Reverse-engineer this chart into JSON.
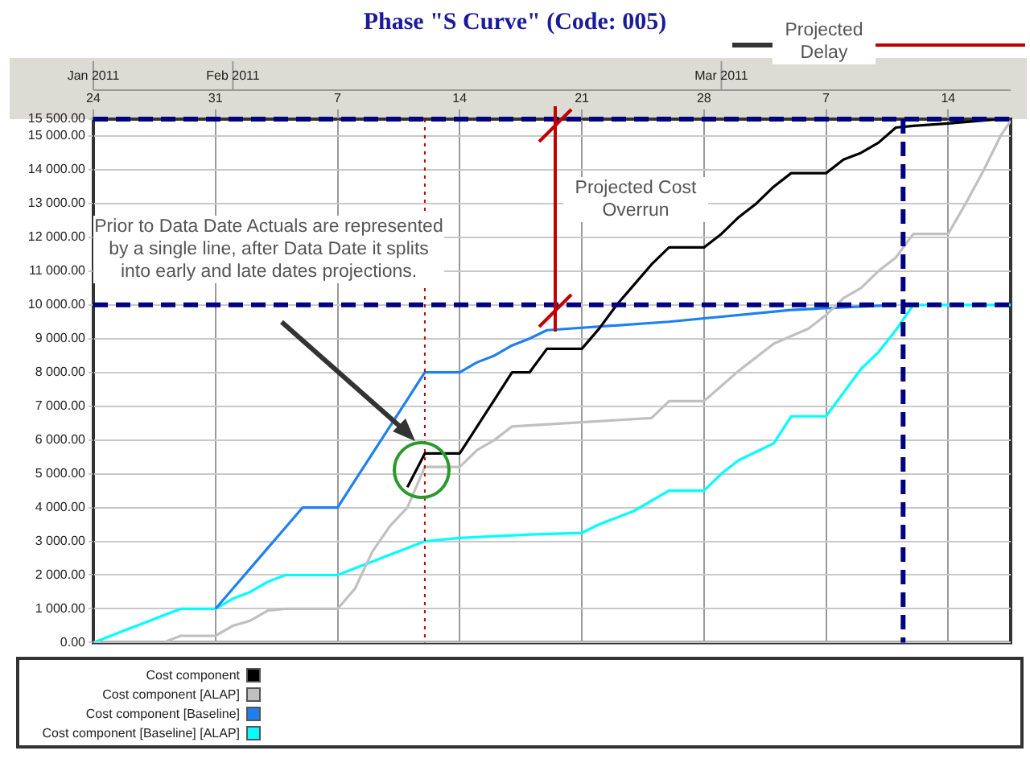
{
  "chart_data": {
    "type": "line",
    "title": "Phase \"S Curve\" (Code: 005)",
    "xlim": [
      "--01-24",
      "--03-17T14:00"
    ],
    "xticks": [
      {
        "value": "--01-24",
        "label": "24"
      },
      {
        "value": "--01-31",
        "label": "31"
      },
      {
        "value": "--02-07",
        "label": "7"
      },
      {
        "value": "--02-14",
        "label": "14"
      },
      {
        "value": "--02-21",
        "label": "21"
      },
      {
        "value": "--02-28",
        "label": "28"
      },
      {
        "value": "--03-07",
        "label": "7"
      },
      {
        "value": "--03-14",
        "label": "14"
      }
    ],
    "x2lim": [
      "2011-01-24",
      "2011-03-17T14:00"
    ],
    "x2ticks": [
      {
        "value": "2011-01-24",
        "label": "Jan 2011"
      },
      {
        "value": "2011-02-01",
        "label": "Feb 2011"
      },
      {
        "value": "2011-03-01",
        "label": "Mar 2011"
      }
    ],
    "ylim": [
      0,
      15500
    ],
    "yticks": [
      {
        "value": 0,
        "label": "0.00"
      },
      {
        "value": 1000,
        "label": "1 000.00"
      },
      {
        "value": 2000,
        "label": "2 000.00"
      },
      {
        "value": 3000,
        "label": "3 000.00"
      },
      {
        "value": 4000,
        "label": "4 000.00"
      },
      {
        "value": 5000,
        "label": "5 000.00"
      },
      {
        "value": 6000,
        "label": "6 000.00"
      },
      {
        "value": 7000,
        "label": "7 000.00"
      },
      {
        "value": 8000,
        "label": "8 000.00"
      },
      {
        "value": 9000,
        "label": "9 000.00"
      },
      {
        "value": 10000,
        "label": "10 000.00"
      },
      {
        "value": 11000,
        "label": "11 000.00"
      },
      {
        "value": 12000,
        "label": "12 000.00"
      },
      {
        "value": 13000,
        "label": "13 000.00"
      },
      {
        "value": 14000,
        "label": "14 000.00"
      },
      {
        "value": 15000,
        "label": "15 000.00"
      },
      {
        "value": 15500,
        "label": "15 500.00"
      }
    ],
    "grid": true,
    "legend": "bottom",
    "marker": "none",
    "line_style": "solid",
    "series": [
      {
        "name": "Cost component",
        "color": "#000000",
        "x": [
          "--02-11",
          "--02-12",
          "--02-14",
          "--02-15",
          "--02-16",
          "--02-17",
          "--02-18",
          "--02-19",
          "--02-21",
          "--02-22",
          "--02-23",
          "--02-24",
          "--02-25",
          "--02-26",
          "--02-28",
          "--03-01",
          "--03-02",
          "--03-03",
          "--03-04",
          "--03-05",
          "--03-07",
          "--03-08",
          "--03-09",
          "--03-10",
          "--03-11",
          "--03-12",
          "--03-14",
          "--03-17"
        ],
        "values": [
          4600,
          5600,
          5600,
          6400,
          7200,
          8000,
          8000,
          8700,
          8700,
          9300,
          10000,
          10600,
          11200,
          11700,
          11700,
          12100,
          12600,
          13000,
          13500,
          13900,
          13900,
          14300,
          14500,
          14800,
          15250,
          15300,
          15370,
          15500
        ]
      },
      {
        "name": "Cost component [ALAP]",
        "color": "#c0c0c0",
        "x": [
          "--01-24",
          "--01-28",
          "--01-29",
          "--01-31",
          "--02-01",
          "--02-02",
          "--02-03",
          "--02-04",
          "--02-07",
          "--02-08",
          "--02-09",
          "--02-10",
          "--02-11",
          "--02-12",
          "--02-14",
          "--02-15",
          "--02-16",
          "--02-17",
          "--02-25",
          "--02-26",
          "--02-28",
          "--03-01",
          "--03-02",
          "--03-04",
          "--03-06",
          "--03-07",
          "--03-08",
          "--03-09",
          "--03-10",
          "--03-11",
          "--03-12",
          "--03-14",
          "--03-15",
          "--03-16",
          "--03-17",
          "--03-17T14:00"
        ],
        "values": [
          0,
          0,
          200,
          200,
          500,
          650,
          950,
          1000,
          1000,
          1600,
          2700,
          3450,
          4000,
          5200,
          5200,
          5700,
          6000,
          6400,
          6650,
          7150,
          7150,
          7600,
          8050,
          8850,
          9300,
          9700,
          10200,
          10500,
          11000,
          11400,
          12100,
          12100,
          13000,
          13950,
          15000,
          15450
        ]
      },
      {
        "name": "Cost component [Baseline]",
        "color": "#1e80f0",
        "x": [
          "--01-31",
          "--02-01",
          "--02-02",
          "--02-03",
          "--02-04",
          "--02-05",
          "--02-07",
          "--02-08",
          "--02-09",
          "--02-10",
          "--02-11",
          "--02-12",
          "--02-14",
          "--02-15",
          "--02-16",
          "--02-17",
          "--02-18",
          "--02-19",
          "--02-26",
          "--03-05",
          "--03-11"
        ],
        "values": [
          1000,
          1600,
          2200,
          2800,
          3400,
          4000,
          4000,
          4800,
          5600,
          6400,
          7200,
          8000,
          8000,
          8300,
          8500,
          8800,
          9000,
          9250,
          9500,
          9850,
          10000
        ]
      },
      {
        "name": "Cost component [Baseline] [ALAP]",
        "color": "#00ffff",
        "x": [
          "--01-24",
          "--01-25",
          "--01-26",
          "--01-27",
          "--01-28",
          "--01-29",
          "--01-31",
          "--02-01",
          "--02-02",
          "--02-03",
          "--02-04",
          "--02-07",
          "--02-08",
          "--02-09",
          "--02-10",
          "--02-11",
          "--02-12",
          "--02-14",
          "--02-18",
          "--02-21",
          "--02-22",
          "--02-24",
          "--02-25",
          "--02-26",
          "--02-28",
          "--03-01",
          "--03-02",
          "--03-04",
          "--03-05",
          "--03-07",
          "--03-08",
          "--03-09",
          "--03-10",
          "--03-11",
          "--03-12",
          "--03-17T14:00"
        ],
        "values": [
          0,
          200,
          400,
          600,
          800,
          1000,
          1000,
          1300,
          1500,
          1800,
          2000,
          2000,
          2200,
          2400,
          2600,
          2800,
          3000,
          3100,
          3200,
          3250,
          3500,
          3900,
          4200,
          4500,
          4500,
          5000,
          5400,
          5900,
          6700,
          6700,
          7400,
          8100,
          8600,
          9250,
          10000,
          10000
        ]
      }
    ],
    "ref_lines": [
      {
        "axis": "x",
        "value": "--02-12",
        "color": "#c00000",
        "line_style": "dotted"
      },
      {
        "axis": "y",
        "value": 15500,
        "color": "#000080",
        "line_style": "dashed"
      },
      {
        "axis": "y",
        "value": 10000,
        "color": "#000080",
        "line_style": "dashed"
      },
      {
        "axis": "x",
        "value": "--03-11T10:00",
        "color": "#000080",
        "line_style": "dashed"
      }
    ],
    "annotations": [
      "Prior to Data Date Actuals are represented by a single line, after Data Date it splits into early and late dates projections.",
      "Projected Cost Overrun",
      "Projected Delay"
    ]
  }
}
